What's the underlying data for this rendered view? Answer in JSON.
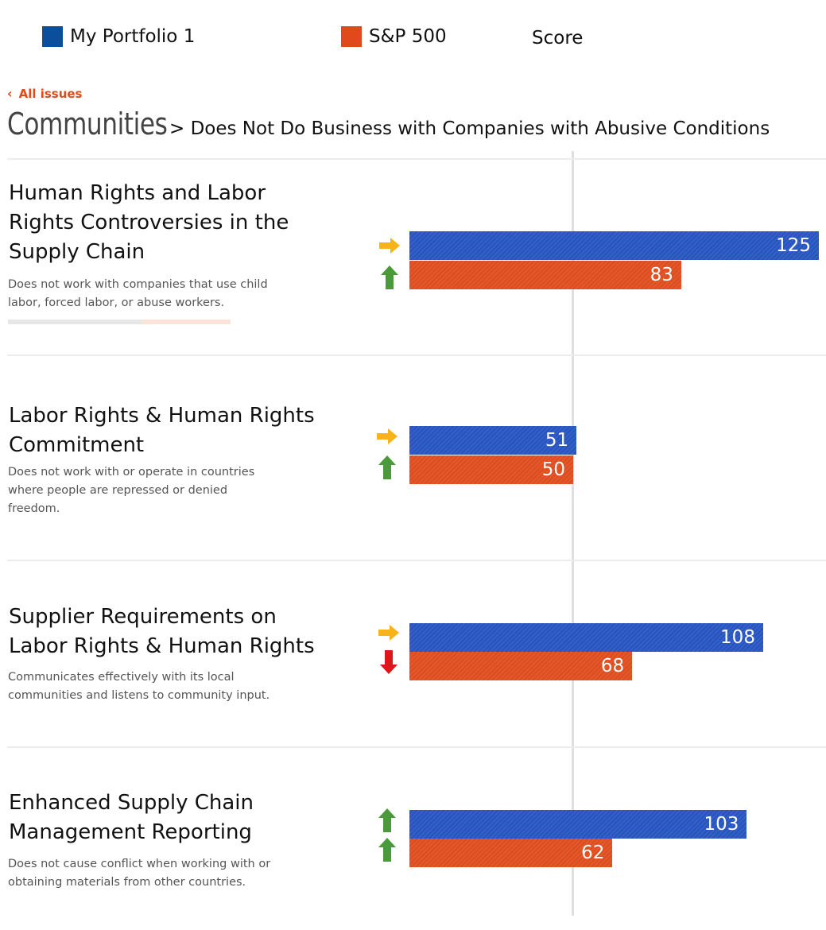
{
  "legend": {
    "portfolio_label": "My Portfolio 1",
    "portfolio_color": "#0b4f9c",
    "benchmark_label": "S&P 500",
    "benchmark_color": "#e04a1a",
    "score_label": "Score"
  },
  "nav": {
    "back_label": "All issues",
    "back_icon": "chevron-left-icon"
  },
  "heading": {
    "category": "Communities",
    "subtitle": "> Does Not Do Business with Companies with Abusive Conditions"
  },
  "colors": {
    "up": "#4a9a3a",
    "flat": "#f8b21a",
    "down": "#e0141a",
    "portfolio_bar": "#2856c5",
    "benchmark_bar": "#e24f1f"
  },
  "issues": [
    {
      "title_lines": [
        "Human Rights and Labor",
        "Rights Controversies in the",
        "Supply Chain"
      ],
      "description": [
        "Does not work with companies that use child",
        "labor, forced labor, or abuse workers."
      ],
      "portfolio_score": "125",
      "benchmark_score": "83",
      "portfolio_trend": "right-arrow-icon",
      "benchmark_trend": "up-arrow-icon"
    },
    {
      "title_lines": [
        "Labor Rights & Human Rights",
        "Commitment"
      ],
      "description": [
        "Does not work with or operate in countries",
        "where people are repressed or denied",
        "freedom."
      ],
      "portfolio_score": "51",
      "benchmark_score": "50",
      "portfolio_trend": "right-arrow-icon",
      "benchmark_trend": "up-arrow-icon"
    },
    {
      "title_lines": [
        "Supplier Requirements on",
        "Labor Rights & Human Rights"
      ],
      "description": [
        "Communicates effectively with its local",
        "communities and listens to community input."
      ],
      "portfolio_score": "108",
      "benchmark_score": "68",
      "portfolio_trend": "right-arrow-icon",
      "benchmark_trend": "down-arrow-icon"
    },
    {
      "title_lines": [
        "Enhanced Supply Chain",
        "Management Reporting"
      ],
      "description": [
        "Does not cause conflict when working with or",
        "obtaining materials from other countries."
      ],
      "portfolio_score": "103",
      "benchmark_score": "62",
      "portfolio_trend": "up-arrow-icon",
      "benchmark_trend": "up-arrow-icon"
    }
  ]
}
